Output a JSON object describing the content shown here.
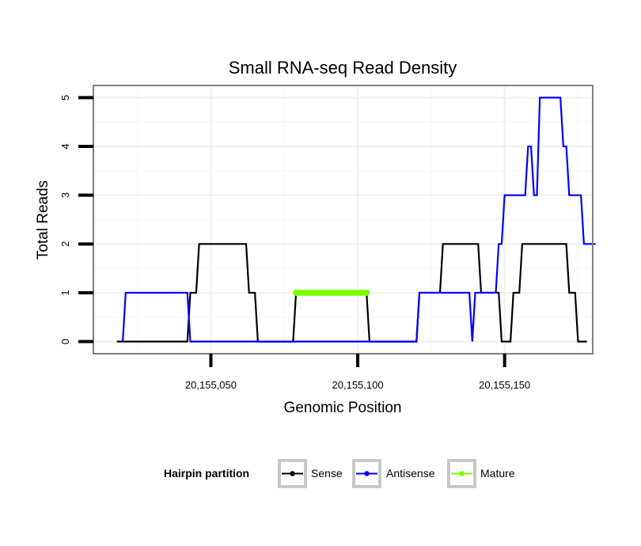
{
  "chart_data": {
    "type": "line",
    "title": "Small RNA-seq Read Density",
    "xlabel": "Genomic Position",
    "ylabel": "Total Reads",
    "xlim": [
      20155010,
      20155180
    ],
    "ylim": [
      -0.25,
      5.25
    ],
    "x_ticks": [
      20155050,
      20155100,
      20155150
    ],
    "x_tick_labels": [
      "20,155,050",
      "20,155,100",
      "20,155,150"
    ],
    "y_ticks": [
      0,
      1,
      2,
      3,
      4,
      5
    ],
    "y_tick_labels": [
      "0",
      "1",
      "2",
      "3",
      "4",
      "5"
    ],
    "legend": {
      "title": "Hairpin partition",
      "position": "bottom",
      "entries": [
        "Sense",
        "Antisense",
        "Mature"
      ]
    },
    "series": [
      {
        "name": "Sense",
        "color": "#000000",
        "points": [
          [
            20155018,
            0
          ],
          [
            20155042,
            0
          ],
          [
            20155043,
            1
          ],
          [
            20155045,
            1
          ],
          [
            20155046,
            2
          ],
          [
            20155062,
            2
          ],
          [
            20155063,
            1
          ],
          [
            20155065,
            1
          ],
          [
            20155066,
            0
          ],
          [
            20155078,
            0
          ],
          [
            20155079,
            1
          ],
          [
            20155099,
            1
          ],
          [
            20155100,
            1
          ],
          [
            20155103,
            1
          ],
          [
            20155104,
            0
          ],
          [
            20155120,
            0
          ],
          [
            20155121,
            1
          ],
          [
            20155128,
            1
          ],
          [
            20155129,
            2
          ],
          [
            20155141,
            2
          ],
          [
            20155142,
            1
          ],
          [
            20155148,
            1
          ],
          [
            20155149,
            0
          ],
          [
            20155152,
            0
          ],
          [
            20155153,
            1
          ],
          [
            20155155,
            1
          ],
          [
            20155156,
            2
          ],
          [
            20155171,
            2
          ],
          [
            20155172,
            1
          ],
          [
            20155174,
            1
          ],
          [
            20155175,
            0
          ],
          [
            20155178,
            0
          ]
        ]
      },
      {
        "name": "Antisense",
        "color": "#0000ff",
        "points": [
          [
            20155020,
            0
          ],
          [
            20155021,
            1
          ],
          [
            20155042,
            1
          ],
          [
            20155043,
            0
          ],
          [
            20155066,
            0
          ],
          [
            20155078,
            0
          ],
          [
            20155103,
            0
          ],
          [
            20155120,
            0
          ],
          [
            20155121,
            1
          ],
          [
            20155138,
            1
          ],
          [
            20155139,
            0
          ],
          [
            20155140,
            1
          ],
          [
            20155147,
            1
          ],
          [
            20155148,
            2
          ],
          [
            20155149,
            2
          ],
          [
            20155150,
            3
          ],
          [
            20155157,
            3
          ],
          [
            20155158,
            4
          ],
          [
            20155159,
            4
          ],
          [
            20155160,
            3
          ],
          [
            20155161,
            3
          ],
          [
            20155162,
            5
          ],
          [
            20155169,
            5
          ],
          [
            20155170,
            4
          ],
          [
            20155171,
            4
          ],
          [
            20155172,
            3
          ],
          [
            20155176,
            3
          ],
          [
            20155177,
            2
          ],
          [
            20155181,
            2
          ]
        ]
      },
      {
        "name": "Mature",
        "color": "#7cfc00",
        "points": [
          [
            20155079,
            1
          ],
          [
            20155080,
            1
          ],
          [
            20155081,
            1
          ],
          [
            20155082,
            1
          ],
          [
            20155083,
            1
          ],
          [
            20155084,
            1
          ],
          [
            20155085,
            1
          ],
          [
            20155086,
            1
          ],
          [
            20155087,
            1
          ],
          [
            20155088,
            1
          ],
          [
            20155089,
            1
          ],
          [
            20155090,
            1
          ],
          [
            20155091,
            1
          ],
          [
            20155092,
            1
          ],
          [
            20155093,
            1
          ],
          [
            20155094,
            1
          ],
          [
            20155095,
            1
          ],
          [
            20155096,
            1
          ],
          [
            20155097,
            1
          ],
          [
            20155098,
            1
          ],
          [
            20155099,
            1
          ],
          [
            20155100,
            1
          ],
          [
            20155101,
            1
          ],
          [
            20155102,
            1
          ],
          [
            20155103,
            1
          ]
        ]
      }
    ]
  }
}
